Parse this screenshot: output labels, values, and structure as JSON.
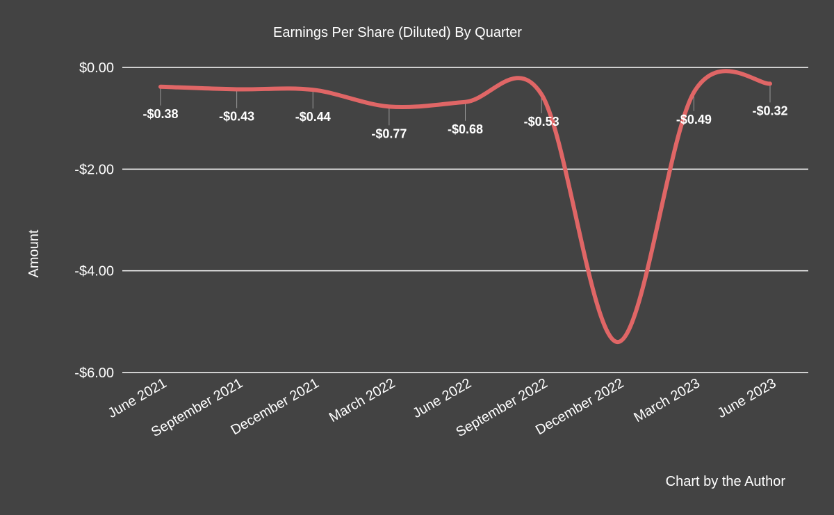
{
  "chart_data": {
    "type": "line",
    "title": "Earnings Per Share (Diluted) By Quarter",
    "xlabel": "",
    "ylabel": "Amount",
    "categories": [
      "June 2021",
      "September 2021",
      "December 2021",
      "March 2022",
      "June 2022",
      "September 2022",
      "December 2022",
      "March 2023",
      "June 2023"
    ],
    "values": [
      -0.38,
      -0.43,
      -0.44,
      -0.77,
      -0.68,
      -0.53,
      -5.4,
      -0.49,
      -0.32
    ],
    "data_labels": [
      "-$0.38",
      "-$0.43",
      "-$0.44",
      "-$0.77",
      "-$0.68",
      "-$0.53",
      "",
      "-$0.49",
      "-$0.32"
    ],
    "y_ticks": [
      0,
      -2,
      -4,
      -6
    ],
    "y_tick_labels": [
      "$0.00",
      "-$2.00",
      "-$4.00",
      "-$6.00"
    ],
    "ylim": [
      -6,
      0
    ],
    "grid": true,
    "legend": "none",
    "footer": "Chart by the Author",
    "colors": {
      "background": "#434343",
      "line": "#e06666",
      "text": "#ffffff",
      "grid": "#ffffff"
    }
  }
}
